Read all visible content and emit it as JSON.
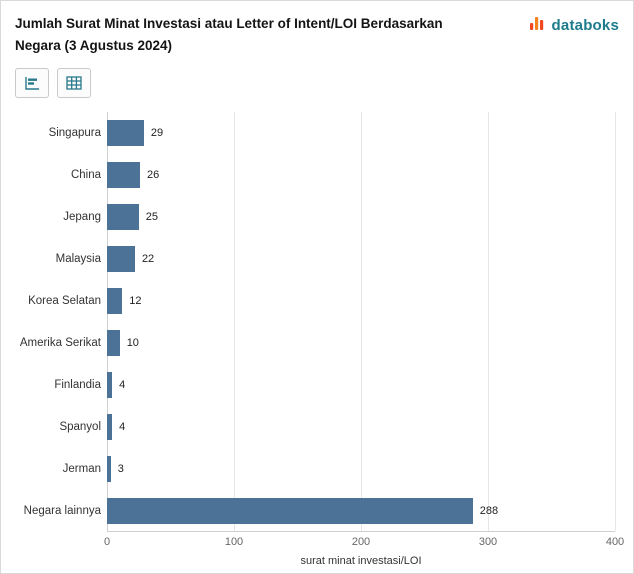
{
  "header": {
    "title": "Jumlah Surat Minat Investasi atau Letter of Intent/LOI Berdasarkan Negara (3 Agustus 2024)",
    "brand": "databoks"
  },
  "toolbar": {
    "buttons": [
      {
        "icon": "bar-chart-icon",
        "action": "show-chart"
      },
      {
        "icon": "table-icon",
        "action": "show-table"
      }
    ]
  },
  "colors": {
    "bar": "#4d7298",
    "brand_teal": "#1d7b8c",
    "brand_orange": "#f58220",
    "brand_red": "#ef4823",
    "gridline": "#e6e6e6"
  },
  "chart_data": {
    "type": "bar",
    "orientation": "horizontal",
    "categories": [
      "Singapura",
      "China",
      "Jepang",
      "Malaysia",
      "Korea Selatan",
      "Amerika Serikat",
      "Finlandia",
      "Spanyol",
      "Jerman",
      "Negara lainnya"
    ],
    "values": [
      29,
      26,
      25,
      22,
      12,
      10,
      4,
      4,
      3,
      288
    ],
    "title": "Jumlah Surat Minat Investasi atau Letter of Intent/LOI Berdasarkan Negara (3 Agustus 2024)",
    "xlabel": "surat minat investasi/LOI",
    "ylabel": "",
    "xlim": [
      0,
      400
    ],
    "xticks": [
      0,
      100,
      200,
      300,
      400
    ],
    "grid": true,
    "legend": false
  }
}
